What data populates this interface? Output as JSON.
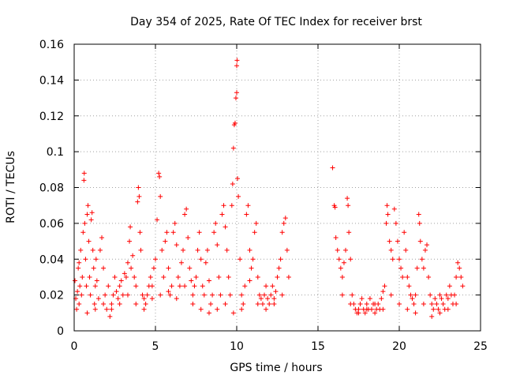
{
  "chart_data": {
    "type": "scatter",
    "title": "Day 354 of 2025, Rate Of TEC Index for receiver brst",
    "xlabel": "GPS time / hours",
    "ylabel": "ROTI / TECUs",
    "xlim": [
      0,
      25
    ],
    "ylim": [
      0,
      0.16
    ],
    "xticks": [
      0,
      5,
      10,
      15,
      20,
      25
    ],
    "yticks": [
      0,
      0.02,
      0.04,
      0.06,
      0.08,
      0.1,
      0.12,
      0.14,
      0.16
    ],
    "xtick_labels": [
      "0",
      "5",
      "10",
      "15",
      "20",
      "25"
    ],
    "ytick_labels": [
      "0",
      "0.02",
      "0.04",
      "0.06",
      "0.08",
      "0.1",
      "0.12",
      "0.14",
      "0.16"
    ],
    "grid": true,
    "marker": "+",
    "color": "#ff0000",
    "series": [
      {
        "points": [
          [
            0.05,
            0.028
          ],
          [
            0.1,
            0.018
          ],
          [
            0.15,
            0.012
          ],
          [
            0.2,
            0.022
          ],
          [
            0.25,
            0.035
          ],
          [
            0.3,
            0.015
          ],
          [
            0.35,
            0.025
          ],
          [
            0.4,
            0.045
          ],
          [
            0.45,
            0.02
          ],
          [
            0.5,
            0.03
          ],
          [
            0.55,
            0.055
          ],
          [
            0.6,
            0.084
          ],
          [
            0.62,
            0.088
          ],
          [
            0.65,
            0.06
          ],
          [
            0.7,
            0.04
          ],
          [
            0.75,
            0.025
          ],
          [
            0.8,
            0.065
          ],
          [
            0.85,
            0.07
          ],
          [
            0.9,
            0.05
          ],
          [
            0.95,
            0.03
          ],
          [
            1.0,
            0.02
          ],
          [
            1.05,
            0.062
          ],
          [
            1.1,
            0.066
          ],
          [
            1.15,
            0.045
          ],
          [
            1.2,
            0.035
          ],
          [
            1.25,
            0.015
          ],
          [
            1.3,
            0.025
          ],
          [
            1.35,
            0.04
          ],
          [
            1.4,
            0.028
          ],
          [
            1.5,
            0.018
          ],
          [
            1.6,
            0.045
          ],
          [
            1.7,
            0.052
          ],
          [
            1.8,
            0.035
          ],
          [
            1.9,
            0.02
          ],
          [
            2.0,
            0.012
          ],
          [
            2.1,
            0.025
          ],
          [
            2.2,
            0.008
          ],
          [
            2.3,
            0.015
          ],
          [
            2.4,
            0.02
          ],
          [
            2.5,
            0.03
          ],
          [
            2.6,
            0.022
          ],
          [
            2.7,
            0.018
          ],
          [
            2.8,
            0.025
          ],
          [
            2.9,
            0.028
          ],
          [
            3.0,
            0.02
          ],
          [
            3.1,
            0.032
          ],
          [
            3.2,
            0.03
          ],
          [
            3.3,
            0.038
          ],
          [
            3.4,
            0.05
          ],
          [
            3.45,
            0.058
          ],
          [
            3.5,
            0.035
          ],
          [
            3.6,
            0.042
          ],
          [
            3.7,
            0.03
          ],
          [
            3.8,
            0.025
          ],
          [
            3.9,
            0.072
          ],
          [
            3.95,
            0.08
          ],
          [
            4.0,
            0.075
          ],
          [
            4.05,
            0.055
          ],
          [
            4.1,
            0.045
          ],
          [
            4.2,
            0.02
          ],
          [
            4.3,
            0.018
          ],
          [
            4.4,
            0.015
          ],
          [
            4.5,
            0.02
          ],
          [
            4.6,
            0.025
          ],
          [
            4.7,
            0.03
          ],
          [
            4.8,
            0.025
          ],
          [
            4.9,
            0.035
          ],
          [
            5.0,
            0.04
          ],
          [
            5.1,
            0.062
          ],
          [
            5.2,
            0.088
          ],
          [
            5.25,
            0.086
          ],
          [
            5.3,
            0.075
          ],
          [
            5.4,
            0.045
          ],
          [
            5.5,
            0.03
          ],
          [
            5.6,
            0.05
          ],
          [
            5.7,
            0.055
          ],
          [
            5.8,
            0.035
          ],
          [
            5.9,
            0.02
          ],
          [
            6.0,
            0.025
          ],
          [
            6.1,
            0.055
          ],
          [
            6.2,
            0.06
          ],
          [
            6.3,
            0.048
          ],
          [
            6.4,
            0.03
          ],
          [
            6.5,
            0.025
          ],
          [
            6.6,
            0.038
          ],
          [
            6.7,
            0.045
          ],
          [
            6.8,
            0.065
          ],
          [
            6.9,
            0.068
          ],
          [
            7.0,
            0.052
          ],
          [
            7.1,
            0.035
          ],
          [
            7.2,
            0.028
          ],
          [
            7.3,
            0.02
          ],
          [
            7.4,
            0.025
          ],
          [
            7.5,
            0.03
          ],
          [
            7.6,
            0.045
          ],
          [
            7.7,
            0.055
          ],
          [
            7.8,
            0.04
          ],
          [
            7.9,
            0.025
          ],
          [
            8.0,
            0.02
          ],
          [
            8.1,
            0.038
          ],
          [
            8.2,
            0.045
          ],
          [
            8.3,
            0.028
          ],
          [
            8.4,
            0.015
          ],
          [
            8.5,
            0.02
          ],
          [
            8.6,
            0.055
          ],
          [
            8.7,
            0.06
          ],
          [
            8.8,
            0.048
          ],
          [
            8.9,
            0.03
          ],
          [
            9.0,
            0.02
          ],
          [
            9.1,
            0.065
          ],
          [
            9.2,
            0.07
          ],
          [
            9.3,
            0.058
          ],
          [
            9.4,
            0.045
          ],
          [
            9.5,
            0.03
          ],
          [
            9.6,
            0.02
          ],
          [
            9.7,
            0.07
          ],
          [
            9.75,
            0.082
          ],
          [
            9.8,
            0.102
          ],
          [
            9.85,
            0.115
          ],
          [
            9.9,
            0.116
          ],
          [
            9.95,
            0.13
          ],
          [
            10.0,
            0.133
          ],
          [
            10.0,
            0.148
          ],
          [
            10.02,
            0.151
          ],
          [
            10.05,
            0.085
          ],
          [
            10.1,
            0.075
          ],
          [
            10.2,
            0.04
          ],
          [
            10.3,
            0.02
          ],
          [
            10.4,
            0.015
          ],
          [
            10.5,
            0.025
          ],
          [
            10.6,
            0.065
          ],
          [
            10.7,
            0.07
          ],
          [
            10.8,
            0.045
          ],
          [
            10.9,
            0.035
          ],
          [
            11.0,
            0.04
          ],
          [
            11.1,
            0.055
          ],
          [
            11.2,
            0.06
          ],
          [
            11.3,
            0.03
          ],
          [
            11.4,
            0.02
          ],
          [
            11.5,
            0.018
          ],
          [
            11.6,
            0.015
          ],
          [
            11.7,
            0.02
          ],
          [
            11.8,
            0.025
          ],
          [
            11.9,
            0.018
          ],
          [
            12.0,
            0.015
          ],
          [
            12.1,
            0.02
          ],
          [
            12.2,
            0.025
          ],
          [
            12.3,
            0.018
          ],
          [
            12.4,
            0.022
          ],
          [
            12.5,
            0.03
          ],
          [
            12.6,
            0.035
          ],
          [
            12.7,
            0.04
          ],
          [
            12.8,
            0.055
          ],
          [
            12.9,
            0.06
          ],
          [
            13.0,
            0.063
          ],
          [
            13.1,
            0.045
          ],
          [
            13.2,
            0.03
          ],
          [
            0.3,
            0.038
          ],
          [
            0.8,
            0.01
          ],
          [
            1.3,
            0.012
          ],
          [
            1.8,
            0.015
          ],
          [
            2.3,
            0.012
          ],
          [
            2.8,
            0.015
          ],
          [
            3.3,
            0.02
          ],
          [
            3.8,
            0.015
          ],
          [
            4.3,
            0.012
          ],
          [
            4.8,
            0.018
          ],
          [
            5.3,
            0.02
          ],
          [
            5.8,
            0.022
          ],
          [
            6.3,
            0.018
          ],
          [
            6.8,
            0.025
          ],
          [
            7.3,
            0.015
          ],
          [
            7.8,
            0.012
          ],
          [
            8.3,
            0.01
          ],
          [
            8.8,
            0.012
          ],
          [
            9.3,
            0.015
          ],
          [
            9.8,
            0.01
          ],
          [
            10.3,
            0.012
          ],
          [
            10.8,
            0.028
          ],
          [
            11.3,
            0.015
          ],
          [
            11.8,
            0.012
          ],
          [
            12.3,
            0.015
          ],
          [
            12.8,
            0.02
          ],
          [
            15.9,
            0.091
          ],
          [
            16.0,
            0.07
          ],
          [
            16.05,
            0.069
          ],
          [
            16.1,
            0.052
          ],
          [
            16.2,
            0.045
          ],
          [
            16.3,
            0.04
          ],
          [
            16.4,
            0.035
          ],
          [
            16.5,
            0.03
          ],
          [
            16.6,
            0.038
          ],
          [
            16.7,
            0.045
          ],
          [
            16.8,
            0.074
          ],
          [
            16.85,
            0.07
          ],
          [
            16.9,
            0.055
          ],
          [
            17.0,
            0.04
          ],
          [
            17.1,
            0.02
          ],
          [
            17.2,
            0.015
          ],
          [
            17.3,
            0.012
          ],
          [
            17.4,
            0.01
          ],
          [
            17.5,
            0.012
          ],
          [
            17.6,
            0.015
          ],
          [
            17.7,
            0.018
          ],
          [
            17.8,
            0.012
          ],
          [
            17.9,
            0.01
          ],
          [
            18.0,
            0.015
          ],
          [
            18.1,
            0.012
          ],
          [
            18.2,
            0.018
          ],
          [
            18.3,
            0.012
          ],
          [
            18.4,
            0.015
          ],
          [
            18.5,
            0.01
          ],
          [
            18.6,
            0.012
          ],
          [
            18.7,
            0.015
          ],
          [
            18.8,
            0.012
          ],
          [
            18.9,
            0.018
          ],
          [
            19.0,
            0.022
          ],
          [
            19.1,
            0.025
          ],
          [
            19.2,
            0.06
          ],
          [
            19.25,
            0.07
          ],
          [
            19.3,
            0.065
          ],
          [
            19.4,
            0.05
          ],
          [
            19.5,
            0.045
          ],
          [
            19.6,
            0.04
          ],
          [
            19.7,
            0.068
          ],
          [
            19.8,
            0.06
          ],
          [
            19.9,
            0.05
          ],
          [
            20.0,
            0.04
          ],
          [
            20.1,
            0.035
          ],
          [
            20.2,
            0.03
          ],
          [
            20.3,
            0.055
          ],
          [
            20.4,
            0.045
          ],
          [
            20.5,
            0.03
          ],
          [
            20.6,
            0.025
          ],
          [
            20.7,
            0.02
          ],
          [
            20.8,
            0.018
          ],
          [
            20.9,
            0.015
          ],
          [
            21.0,
            0.02
          ],
          [
            21.1,
            0.035
          ],
          [
            21.2,
            0.065
          ],
          [
            21.25,
            0.06
          ],
          [
            21.3,
            0.05
          ],
          [
            21.4,
            0.04
          ],
          [
            21.5,
            0.035
          ],
          [
            21.6,
            0.045
          ],
          [
            21.7,
            0.048
          ],
          [
            21.8,
            0.03
          ],
          [
            21.9,
            0.02
          ],
          [
            22.0,
            0.015
          ],
          [
            22.1,
            0.012
          ],
          [
            22.2,
            0.018
          ],
          [
            22.3,
            0.015
          ],
          [
            22.4,
            0.012
          ],
          [
            22.5,
            0.02
          ],
          [
            22.6,
            0.018
          ],
          [
            22.7,
            0.015
          ],
          [
            22.8,
            0.012
          ],
          [
            22.9,
            0.02
          ],
          [
            23.0,
            0.018
          ],
          [
            23.1,
            0.025
          ],
          [
            23.2,
            0.02
          ],
          [
            23.3,
            0.015
          ],
          [
            23.4,
            0.02
          ],
          [
            23.5,
            0.03
          ],
          [
            23.6,
            0.038
          ],
          [
            23.7,
            0.035
          ],
          [
            23.8,
            0.03
          ],
          [
            23.9,
            0.025
          ],
          [
            16.5,
            0.02
          ],
          [
            17.0,
            0.015
          ],
          [
            17.5,
            0.01
          ],
          [
            18.0,
            0.012
          ],
          [
            18.5,
            0.015
          ],
          [
            19.0,
            0.012
          ],
          [
            19.5,
            0.02
          ],
          [
            20.0,
            0.015
          ],
          [
            20.5,
            0.012
          ],
          [
            21.0,
            0.01
          ],
          [
            21.5,
            0.015
          ],
          [
            22.0,
            0.008
          ],
          [
            22.5,
            0.01
          ],
          [
            23.0,
            0.012
          ],
          [
            23.5,
            0.015
          ]
        ]
      }
    ]
  }
}
